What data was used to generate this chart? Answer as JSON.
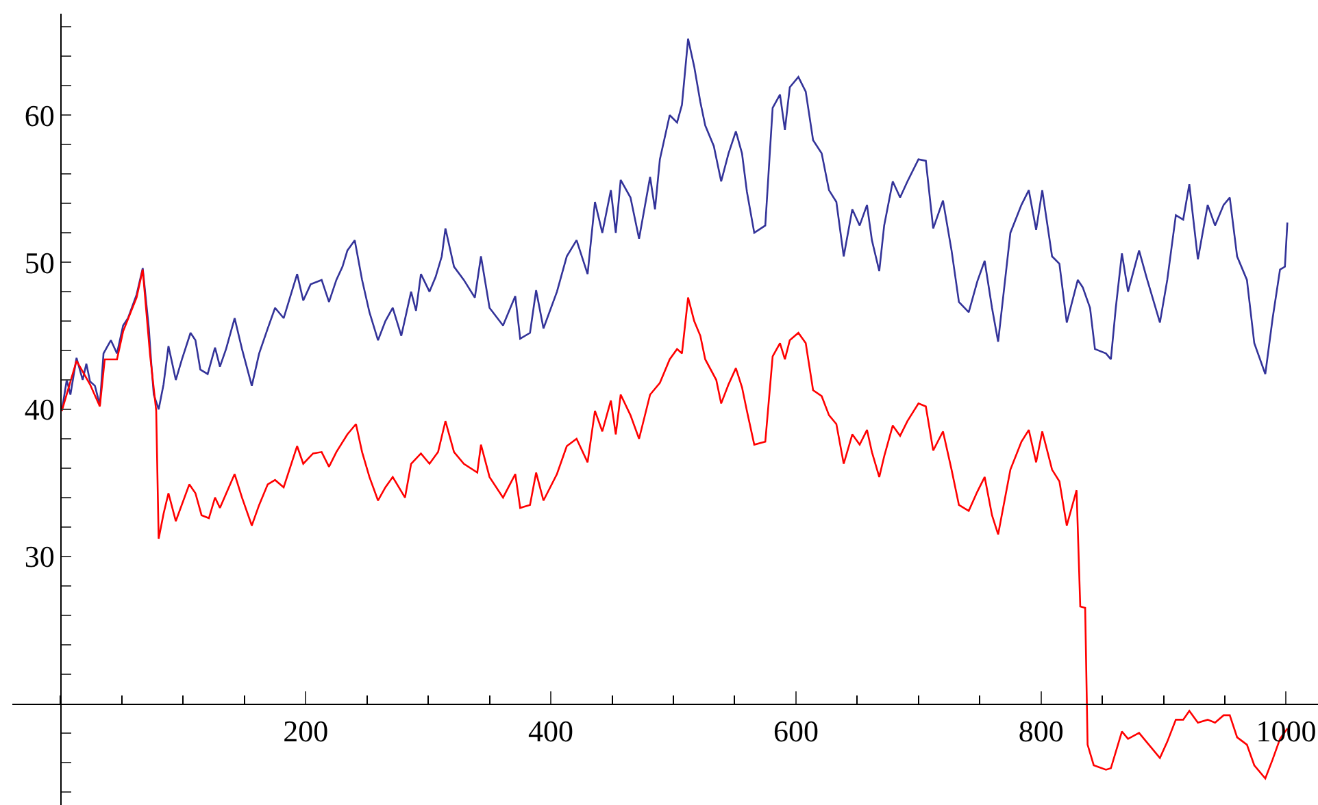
{
  "chart_data": {
    "type": "line",
    "xlim": [
      -39.4,
      1026
    ],
    "ylim": [
      13.1,
      66.9
    ],
    "xticks": [
      200,
      400,
      600,
      800,
      1000
    ],
    "yticks": [
      {
        "value": 14,
        "label": null
      },
      {
        "value": 16,
        "label": null
      },
      {
        "value": 18,
        "label": null
      },
      {
        "value": 22,
        "label": null
      },
      {
        "value": 24,
        "label": null
      },
      {
        "value": 26,
        "label": null
      },
      {
        "value": 28,
        "label": null
      },
      30,
      {
        "value": 32,
        "label": null
      },
      {
        "value": 34,
        "label": null
      },
      {
        "value": 36,
        "label": null
      },
      {
        "value": 38,
        "label": null
      },
      40,
      {
        "value": 42,
        "label": null
      },
      {
        "value": 44,
        "label": null
      },
      {
        "value": 46,
        "label": null
      },
      {
        "value": 48,
        "label": null
      },
      50,
      {
        "value": 52,
        "label": null
      },
      {
        "value": 54,
        "label": null
      },
      {
        "value": 56,
        "label": null
      },
      {
        "value": 58,
        "label": null
      },
      60,
      {
        "value": 62,
        "label": null
      },
      {
        "value": 64,
        "label": null
      },
      {
        "value": 66,
        "label": null
      }
    ],
    "marker": "none",
    "line_style": "solid",
    "series": [
      {
        "color": "#333399",
        "x": [
          1,
          5,
          8,
          13,
          18,
          21,
          24,
          28,
          32,
          35,
          41,
          46,
          51,
          55,
          62,
          67,
          72,
          74,
          76,
          80,
          84,
          88,
          94,
          99,
          106,
          110,
          114,
          120,
          126,
          130,
          135,
          142,
          148,
          156,
          162,
          169,
          175,
          182,
          193,
          198,
          204,
          213,
          219,
          225,
          230,
          234,
          240,
          246,
          252,
          259,
          265,
          271,
          278,
          286,
          290,
          294,
          301,
          306,
          311,
          314,
          321,
          329,
          338,
          343,
          350,
          361,
          371,
          375,
          383,
          388,
          394,
          405,
          413,
          421,
          430,
          436,
          442,
          449,
          453,
          457,
          465,
          472,
          481,
          485,
          489,
          497,
          503,
          507,
          512,
          517,
          522,
          526,
          533,
          539,
          545,
          551,
          556,
          560,
          566,
          575,
          581,
          587,
          591,
          595,
          602,
          608,
          614,
          621,
          627,
          633,
          639,
          646,
          652,
          658,
          662,
          668,
          672,
          679,
          685,
          691,
          700,
          706,
          712,
          720,
          727,
          733,
          741,
          748,
          754,
          760,
          765,
          775,
          784,
          790,
          796,
          801,
          809,
          815,
          821,
          830,
          834,
          840,
          844,
          853,
          857,
          861,
          866,
          871,
          880,
          886,
          897,
          903,
          910,
          916,
          921,
          928,
          936,
          942,
          949,
          954,
          960,
          968,
          974,
          983,
          989,
          995,
          999,
          1001
        ],
        "values": [
          39.9,
          42.0,
          41.0,
          43.5,
          42.0,
          43.1,
          41.9,
          41.6,
          40.3,
          43.8,
          44.7,
          43.8,
          45.7,
          46.2,
          47.8,
          49.6,
          45.5,
          43.1,
          41.0,
          40.0,
          41.7,
          44.3,
          42.0,
          43.4,
          45.2,
          44.7,
          42.7,
          42.4,
          44.2,
          42.9,
          44.1,
          46.2,
          44.1,
          41.6,
          43.8,
          45.5,
          46.9,
          46.2,
          49.2,
          47.4,
          48.5,
          48.8,
          47.3,
          48.8,
          49.7,
          50.8,
          51.5,
          48.8,
          46.6,
          44.7,
          46.0,
          46.9,
          45.0,
          48.0,
          46.7,
          49.2,
          48.0,
          49.0,
          50.4,
          52.3,
          49.7,
          48.8,
          47.6,
          50.4,
          46.9,
          45.7,
          47.7,
          44.8,
          45.2,
          48.1,
          45.5,
          48.0,
          50.4,
          51.5,
          49.2,
          54.1,
          52.0,
          54.9,
          52.0,
          55.6,
          54.4,
          51.6,
          55.8,
          53.6,
          57.0,
          60.0,
          59.5,
          60.7,
          65.2,
          63.3,
          60.9,
          59.3,
          57.9,
          55.5,
          57.4,
          58.9,
          57.4,
          54.8,
          52.0,
          52.5,
          60.5,
          61.4,
          59.0,
          61.9,
          62.6,
          61.6,
          58.3,
          57.4,
          54.9,
          54.1,
          50.4,
          53.6,
          52.5,
          53.9,
          51.5,
          49.4,
          52.5,
          55.5,
          54.4,
          55.5,
          57.0,
          56.9,
          52.3,
          54.2,
          50.8,
          47.3,
          46.6,
          48.7,
          50.1,
          46.9,
          44.6,
          52.0,
          53.9,
          54.9,
          52.2,
          54.9,
          50.4,
          49.9,
          45.9,
          48.8,
          48.3,
          46.9,
          44.1,
          43.8,
          43.4,
          46.9,
          50.6,
          48.0,
          50.8,
          49.0,
          45.9,
          48.8,
          53.2,
          52.9,
          55.3,
          50.2,
          53.9,
          52.5,
          53.9,
          54.4,
          50.4,
          48.8,
          44.5,
          42.4,
          46.2,
          49.5,
          49.7,
          52.7
        ]
      },
      {
        "color": "#ff0000",
        "x": [
          1,
          13,
          24,
          32,
          36,
          46,
          51,
          62,
          67,
          73,
          78,
          80,
          84,
          88,
          94,
          105,
          110,
          115,
          121,
          126,
          130,
          142,
          148,
          156,
          162,
          169,
          175,
          182,
          193,
          198,
          206,
          213,
          219,
          225,
          234,
          241,
          246,
          252,
          259,
          265,
          271,
          281,
          286,
          294,
          301,
          308,
          314,
          321,
          329,
          340,
          343,
          350,
          361,
          371,
          375,
          383,
          388,
          394,
          405,
          413,
          421,
          430,
          436,
          442,
          449,
          453,
          457,
          465,
          472,
          481,
          489,
          497,
          503,
          507,
          512,
          517,
          522,
          526,
          535,
          539,
          545,
          551,
          556,
          560,
          566,
          575,
          581,
          587,
          591,
          595,
          602,
          608,
          614,
          621,
          627,
          633,
          639,
          646,
          652,
          658,
          662,
          668,
          672,
          679,
          685,
          691,
          700,
          706,
          712,
          720,
          727,
          733,
          741,
          748,
          754,
          760,
          765,
          775,
          784,
          790,
          796,
          801,
          809,
          815,
          821,
          829,
          832,
          836,
          838,
          843,
          853,
          857,
          866,
          871,
          880,
          886,
          897,
          903,
          910,
          916,
          921,
          928,
          936,
          942,
          949,
          954,
          960,
          968,
          974,
          983,
          989,
          995,
          1001
        ],
        "values": [
          39.9,
          43.3,
          41.7,
          40.2,
          43.4,
          43.4,
          45.3,
          47.6,
          49.5,
          43.7,
          39.9,
          31.2,
          32.9,
          34.3,
          32.4,
          34.9,
          34.3,
          32.8,
          32.6,
          34.0,
          33.3,
          35.6,
          34.0,
          32.1,
          33.5,
          34.9,
          35.2,
          34.7,
          37.5,
          36.3,
          37.0,
          37.1,
          36.1,
          37.1,
          38.3,
          39.0,
          37.1,
          35.4,
          33.8,
          34.7,
          35.4,
          34.0,
          36.3,
          37.0,
          36.3,
          37.1,
          39.2,
          37.1,
          36.3,
          35.7,
          37.6,
          35.4,
          34.0,
          35.6,
          33.3,
          33.5,
          35.7,
          33.8,
          35.6,
          37.5,
          38.0,
          36.4,
          39.9,
          38.5,
          40.6,
          38.3,
          41.0,
          39.6,
          38.0,
          41.0,
          41.8,
          43.4,
          44.1,
          43.8,
          47.6,
          46.0,
          45.0,
          43.4,
          42.0,
          40.4,
          41.7,
          42.8,
          41.5,
          39.9,
          37.6,
          37.8,
          43.6,
          44.5,
          43.4,
          44.7,
          45.2,
          44.5,
          41.3,
          40.9,
          39.6,
          39.0,
          36.3,
          38.3,
          37.6,
          38.6,
          37.1,
          35.4,
          36.8,
          38.9,
          38.2,
          39.2,
          40.4,
          40.2,
          37.2,
          38.5,
          35.9,
          33.5,
          33.1,
          34.4,
          35.4,
          32.8,
          31.5,
          35.9,
          37.8,
          38.6,
          36.4,
          38.5,
          35.9,
          35.1,
          32.1,
          34.5,
          26.6,
          26.5,
          17.2,
          15.8,
          15.5,
          15.6,
          18.1,
          17.6,
          18.0,
          17.4,
          16.3,
          17.4,
          18.9,
          18.9,
          19.5,
          18.7,
          18.9,
          18.7,
          19.2,
          19.2,
          17.7,
          17.2,
          15.8,
          14.9,
          16.2,
          17.6,
          18.3
        ]
      }
    ]
  }
}
